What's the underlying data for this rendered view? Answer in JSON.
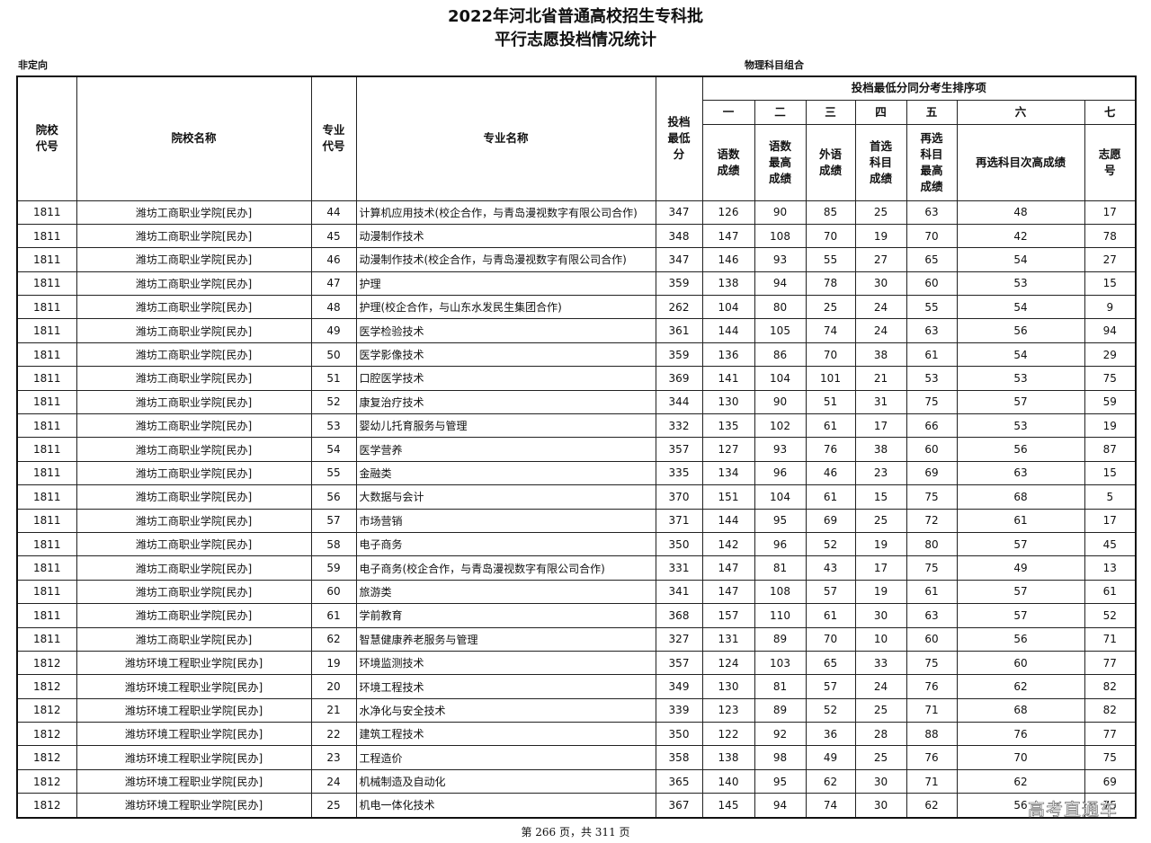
{
  "header": {
    "title": "2022年河北省普通高校招生专科批",
    "subtitle": "平行志愿投档情况统计"
  },
  "labels": {
    "left": "非定向",
    "right": "物理科目组合"
  },
  "table": {
    "columns": [
      "院校代号",
      "院校名称",
      "专业代号",
      "专业名称",
      "投档最低分"
    ],
    "group_header": "投档最低分同分考生排序项",
    "order_numbers": [
      "一",
      "二",
      "三",
      "四",
      "五",
      "六",
      "七"
    ],
    "sort_columns": [
      "语数成绩",
      "语数最高成绩",
      "外语成绩",
      "首选科目成绩",
      "再选科目最高成绩",
      "再选科目次高成绩",
      "志愿号"
    ],
    "rows": [
      [
        "1811",
        "潍坊工商职业学院[民办]",
        "44",
        "计算机应用技术(校企合作，与青岛漫视数字有限公司合作)",
        347,
        126,
        90,
        85,
        25,
        63,
        48,
        17
      ],
      [
        "1811",
        "潍坊工商职业学院[民办]",
        "45",
        "动漫制作技术",
        348,
        147,
        108,
        70,
        19,
        70,
        42,
        78
      ],
      [
        "1811",
        "潍坊工商职业学院[民办]",
        "46",
        "动漫制作技术(校企合作，与青岛漫视数字有限公司合作)",
        347,
        146,
        93,
        55,
        27,
        65,
        54,
        27
      ],
      [
        "1811",
        "潍坊工商职业学院[民办]",
        "47",
        "护理",
        359,
        138,
        94,
        78,
        30,
        60,
        53,
        15
      ],
      [
        "1811",
        "潍坊工商职业学院[民办]",
        "48",
        "护理(校企合作，与山东水发民生集团合作)",
        262,
        104,
        80,
        25,
        24,
        55,
        54,
        9
      ],
      [
        "1811",
        "潍坊工商职业学院[民办]",
        "49",
        "医学检验技术",
        361,
        144,
        105,
        74,
        24,
        63,
        56,
        94
      ],
      [
        "1811",
        "潍坊工商职业学院[民办]",
        "50",
        "医学影像技术",
        359,
        136,
        86,
        70,
        38,
        61,
        54,
        29
      ],
      [
        "1811",
        "潍坊工商职业学院[民办]",
        "51",
        "口腔医学技术",
        369,
        141,
        104,
        101,
        21,
        53,
        53,
        75
      ],
      [
        "1811",
        "潍坊工商职业学院[民办]",
        "52",
        "康复治疗技术",
        344,
        130,
        90,
        51,
        31,
        75,
        57,
        59
      ],
      [
        "1811",
        "潍坊工商职业学院[民办]",
        "53",
        "婴幼儿托育服务与管理",
        332,
        135,
        102,
        61,
        17,
        66,
        53,
        19
      ],
      [
        "1811",
        "潍坊工商职业学院[民办]",
        "54",
        "医学营养",
        357,
        127,
        93,
        76,
        38,
        60,
        56,
        87
      ],
      [
        "1811",
        "潍坊工商职业学院[民办]",
        "55",
        "金融类",
        335,
        134,
        96,
        46,
        23,
        69,
        63,
        15
      ],
      [
        "1811",
        "潍坊工商职业学院[民办]",
        "56",
        "大数据与会计",
        370,
        151,
        104,
        61,
        15,
        75,
        68,
        5
      ],
      [
        "1811",
        "潍坊工商职业学院[民办]",
        "57",
        "市场营销",
        371,
        144,
        95,
        69,
        25,
        72,
        61,
        17
      ],
      [
        "1811",
        "潍坊工商职业学院[民办]",
        "58",
        "电子商务",
        350,
        142,
        96,
        52,
        19,
        80,
        57,
        45
      ],
      [
        "1811",
        "潍坊工商职业学院[民办]",
        "59",
        "电子商务(校企合作，与青岛漫视数字有限公司合作)",
        331,
        147,
        81,
        43,
        17,
        75,
        49,
        13
      ],
      [
        "1811",
        "潍坊工商职业学院[民办]",
        "60",
        "旅游类",
        341,
        147,
        108,
        57,
        19,
        61,
        57,
        61
      ],
      [
        "1811",
        "潍坊工商职业学院[民办]",
        "61",
        "学前教育",
        368,
        157,
        110,
        61,
        30,
        63,
        57,
        52
      ],
      [
        "1811",
        "潍坊工商职业学院[民办]",
        "62",
        "智慧健康养老服务与管理",
        327,
        131,
        89,
        70,
        10,
        60,
        56,
        71
      ],
      [
        "1812",
        "潍坊环境工程职业学院[民办]",
        "19",
        "环境监测技术",
        357,
        124,
        103,
        65,
        33,
        75,
        60,
        77
      ],
      [
        "1812",
        "潍坊环境工程职业学院[民办]",
        "20",
        "环境工程技术",
        349,
        130,
        81,
        57,
        24,
        76,
        62,
        82
      ],
      [
        "1812",
        "潍坊环境工程职业学院[民办]",
        "21",
        "水净化与安全技术",
        339,
        123,
        89,
        52,
        25,
        71,
        68,
        82
      ],
      [
        "1812",
        "潍坊环境工程职业学院[民办]",
        "22",
        "建筑工程技术",
        350,
        122,
        92,
        36,
        28,
        88,
        76,
        77
      ],
      [
        "1812",
        "潍坊环境工程职业学院[民办]",
        "23",
        "工程造价",
        358,
        138,
        98,
        49,
        25,
        76,
        70,
        75
      ],
      [
        "1812",
        "潍坊环境工程职业学院[民办]",
        "24",
        "机械制造及自动化",
        365,
        140,
        95,
        62,
        30,
        71,
        62,
        69
      ],
      [
        "1812",
        "潍坊环境工程职业学院[民办]",
        "25",
        "机电一体化技术",
        367,
        145,
        94,
        74,
        30,
        62,
        56,
        75
      ]
    ]
  },
  "footer": "第 266 页，共 311 页",
  "watermark": "高考直通车"
}
